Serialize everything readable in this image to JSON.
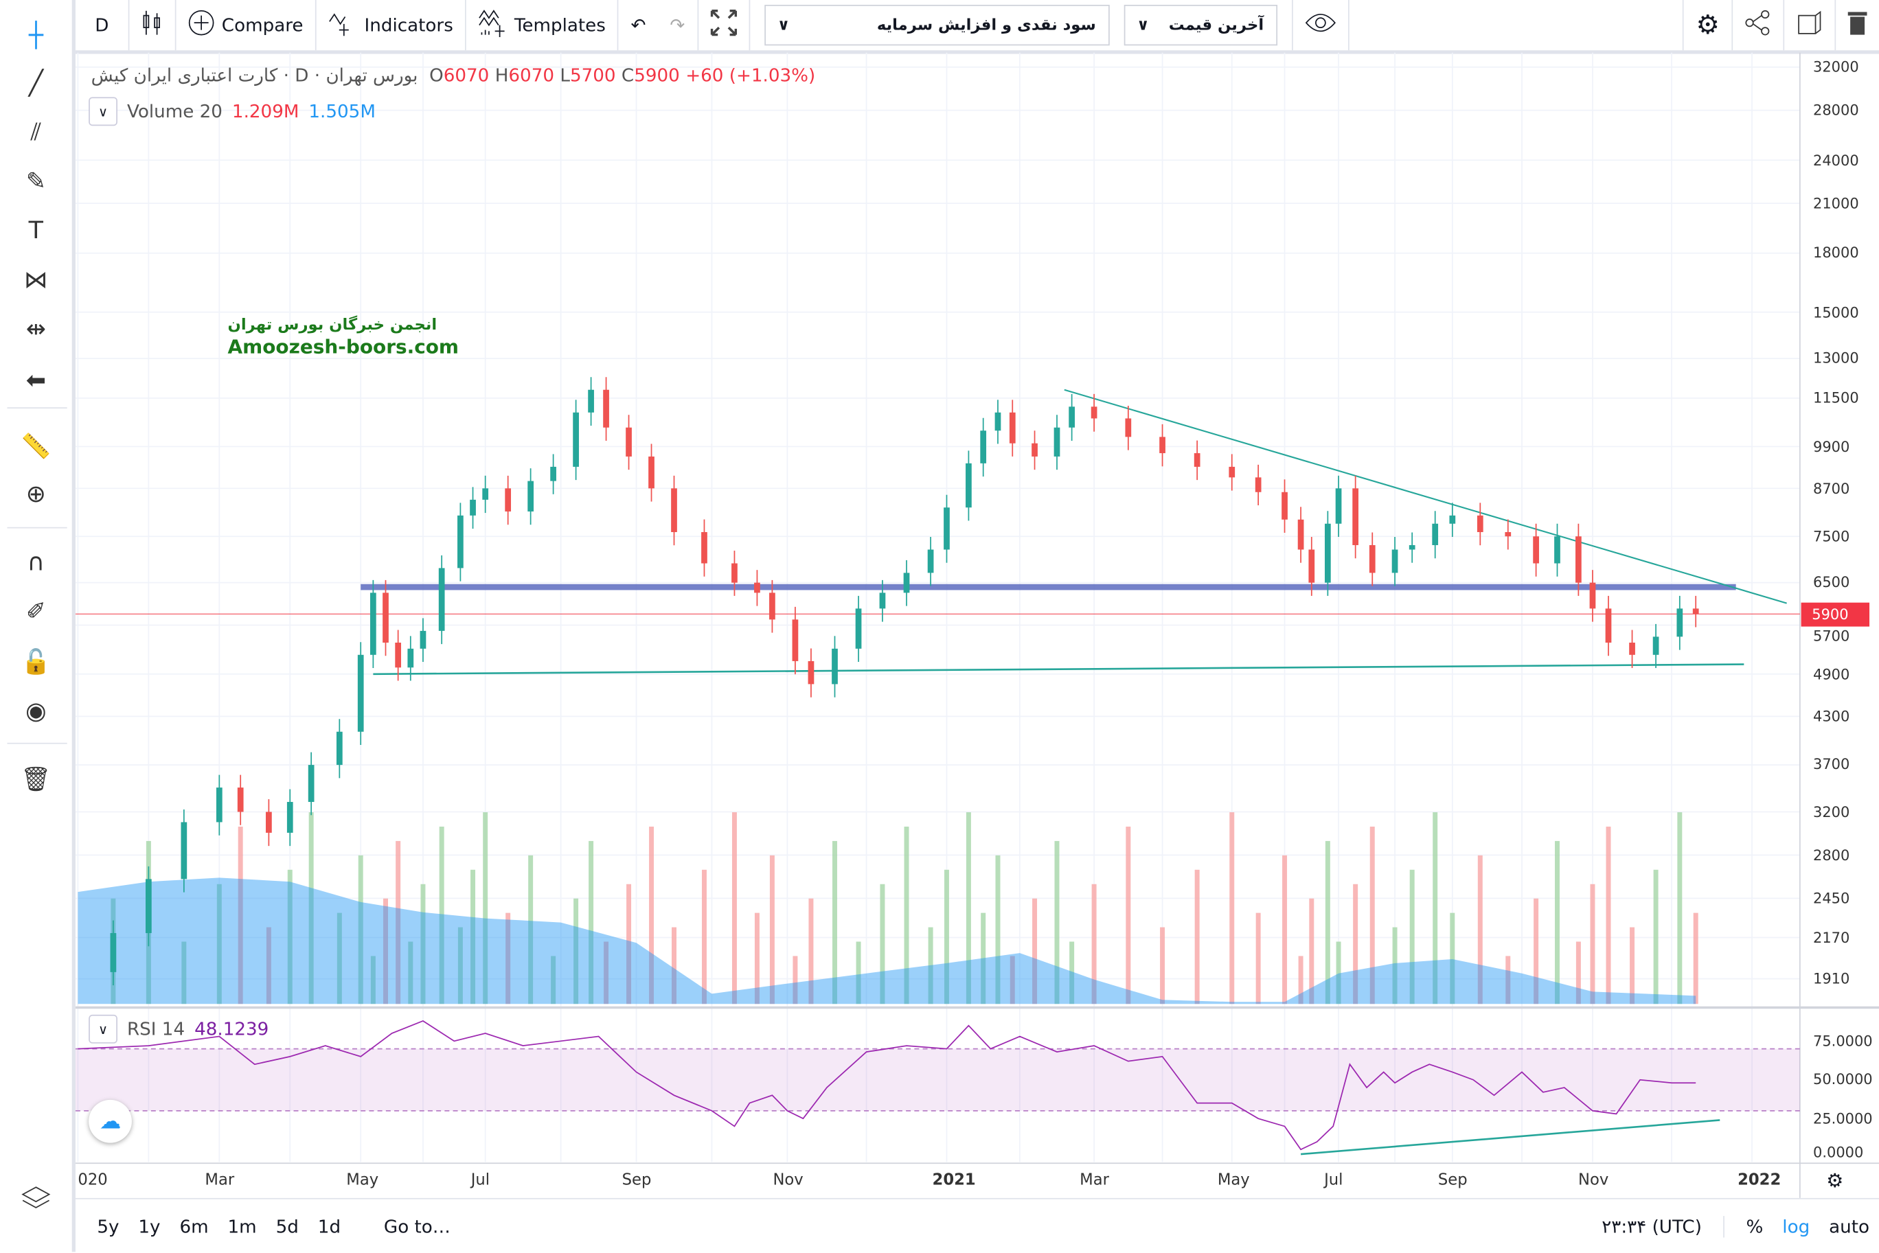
{
  "toolbar": {
    "interval": "D",
    "compare": "Compare",
    "indicators": "Indicators",
    "templates": "Templates",
    "dropdown1": "سود نقدی و افزایش سرمایه",
    "dropdown2": "آخرین قیمت"
  },
  "left_tools": [
    "crosshair-icon",
    "trend-line-icon",
    "pitchfork-icon",
    "brush-icon",
    "text-icon",
    "pattern-icon",
    "prediction-icon",
    "back-arrow-icon",
    "ruler-icon",
    "zoom-in-icon",
    "magnet-icon",
    "lock-drawing-icon",
    "unlock-icon",
    "eye-icon",
    "trash-icon"
  ],
  "legend": {
    "symbol": "کارت اعتباری ایران کیش",
    "interval": "D",
    "exchange": "بورس تهران",
    "o_label": "O",
    "o": "6070",
    "h_label": "H",
    "h": "6070",
    "l_label": "L",
    "l": "5700",
    "c_label": "C",
    "c": "5900",
    "change": "+60 (+1.03%)"
  },
  "volume": {
    "label": "Volume 20",
    "v1": "1.209M",
    "v2": "1.505M"
  },
  "rsi": {
    "label": "RSI 14",
    "value": "48.1239",
    "axis": [
      "75.0000",
      "50.0000",
      "25.0000",
      "0.0000"
    ]
  },
  "watermark": {
    "line1": "انجمن خبرگان بورس تهران",
    "line2": "Amoozesh-boors.com"
  },
  "price_axis": [
    "32000",
    "28000",
    "24000",
    "21000",
    "18000",
    "15000",
    "13000",
    "11500",
    "9900",
    "8700",
    "7500",
    "6500",
    "5700",
    "4900",
    "4300",
    "3700",
    "3200",
    "2800",
    "2450",
    "2170",
    "1910"
  ],
  "last_price": "5900",
  "time_axis": [
    "020",
    "Mar",
    "May",
    "Jul",
    "Sep",
    "Nov",
    "2021",
    "Mar",
    "May",
    "Jul",
    "Sep",
    "Nov",
    "2022"
  ],
  "bottom": {
    "ranges": [
      "5y",
      "1y",
      "6m",
      "1m",
      "5d",
      "1d"
    ],
    "goto": "Go to…",
    "time": "۲۳:۳۴ (UTC)",
    "percent": "%",
    "log": "log",
    "auto": "auto"
  },
  "colors": {
    "up": "#26a69a",
    "down": "#ef5350",
    "rsi": "#9c27b0",
    "zone": "#5c6bc0",
    "trend": "#26a69a",
    "vol_ma": "#2196f3"
  },
  "chart_data": {
    "type": "candlestick",
    "scale": "log",
    "ylim": [
      1910,
      32000
    ],
    "x_unit": "months since Jan 2020",
    "closes": [
      [
        0,
        1950
      ],
      [
        0.5,
        2200
      ],
      [
        1,
        2600
      ],
      [
        1.5,
        3100
      ],
      [
        2,
        3450
      ],
      [
        2.3,
        3200
      ],
      [
        2.7,
        3000
      ],
      [
        3,
        3300
      ],
      [
        3.3,
        3700
      ],
      [
        3.7,
        4100
      ],
      [
        4,
        5200
      ],
      [
        4.2,
        6300
      ],
      [
        4.4,
        5400
      ],
      [
        4.6,
        5000
      ],
      [
        4.8,
        5300
      ],
      [
        5,
        5600
      ],
      [
        5.3,
        6800
      ],
      [
        5.6,
        8000
      ],
      [
        5.8,
        8400
      ],
      [
        6,
        8700
      ],
      [
        6.3,
        8100
      ],
      [
        6.6,
        8900
      ],
      [
        6.9,
        9300
      ],
      [
        7.2,
        11000
      ],
      [
        7.4,
        11800
      ],
      [
        7.6,
        10500
      ],
      [
        7.9,
        9600
      ],
      [
        8.2,
        8700
      ],
      [
        8.5,
        7600
      ],
      [
        8.9,
        6900
      ],
      [
        9.3,
        6500
      ],
      [
        9.6,
        6300
      ],
      [
        9.8,
        5800
      ],
      [
        10.1,
        5100
      ],
      [
        10.3,
        4750
      ],
      [
        10.6,
        5300
      ],
      [
        10.9,
        6000
      ],
      [
        11.2,
        6300
      ],
      [
        11.5,
        6700
      ],
      [
        11.8,
        7200
      ],
      [
        12,
        8200
      ],
      [
        12.3,
        9400
      ],
      [
        12.5,
        10400
      ],
      [
        12.7,
        11000
      ],
      [
        12.9,
        10000
      ],
      [
        13.2,
        9600
      ],
      [
        13.5,
        10500
      ],
      [
        13.7,
        11200
      ],
      [
        14,
        10800
      ],
      [
        14.5,
        10200
      ],
      [
        15,
        9700
      ],
      [
        15.5,
        9300
      ],
      [
        16,
        9000
      ],
      [
        16.5,
        8600
      ],
      [
        17,
        7900
      ],
      [
        17.3,
        7200
      ],
      [
        17.5,
        6500
      ],
      [
        17.8,
        7800
      ],
      [
        18,
        8700
      ],
      [
        18.3,
        7300
      ],
      [
        18.6,
        6700
      ],
      [
        19,
        7200
      ],
      [
        19.3,
        7300
      ],
      [
        19.7,
        7800
      ],
      [
        20,
        8000
      ],
      [
        20.4,
        7600
      ],
      [
        20.8,
        7500
      ],
      [
        21.2,
        6900
      ],
      [
        21.5,
        7500
      ],
      [
        21.8,
        6500
      ],
      [
        22,
        6000
      ],
      [
        22.2,
        5400
      ],
      [
        22.5,
        5200
      ],
      [
        22.8,
        5500
      ],
      [
        23.1,
        6000
      ],
      [
        23.3,
        5900
      ]
    ],
    "volume_ma": [
      [
        0,
        0.55
      ],
      [
        1,
        0.6
      ],
      [
        2,
        0.62
      ],
      [
        3,
        0.6
      ],
      [
        4,
        0.5
      ],
      [
        5,
        0.45
      ],
      [
        6,
        0.42
      ],
      [
        7,
        0.4
      ],
      [
        8,
        0.3
      ],
      [
        9,
        0.05
      ],
      [
        10,
        0.1
      ],
      [
        11,
        0.15
      ],
      [
        12,
        0.2
      ],
      [
        13,
        0.25
      ],
      [
        14,
        0.12
      ],
      [
        15,
        0.02
      ],
      [
        16,
        0.01
      ],
      [
        17,
        0.01
      ],
      [
        18,
        0.15
      ],
      [
        19,
        0.2
      ],
      [
        20,
        0.22
      ],
      [
        21,
        0.15
      ],
      [
        22,
        0.06
      ],
      [
        23.3,
        0.04
      ]
    ],
    "rsi": [
      [
        0,
        70
      ],
      [
        1,
        72
      ],
      [
        2,
        78
      ],
      [
        2.5,
        60
      ],
      [
        3,
        65
      ],
      [
        3.5,
        72
      ],
      [
        4,
        65
      ],
      [
        4.5,
        80
      ],
      [
        5,
        88
      ],
      [
        5.5,
        75
      ],
      [
        6,
        80
      ],
      [
        6.5,
        72
      ],
      [
        7,
        75
      ],
      [
        7.5,
        78
      ],
      [
        8,
        55
      ],
      [
        8.5,
        40
      ],
      [
        9,
        30
      ],
      [
        9.3,
        20
      ],
      [
        9.5,
        35
      ],
      [
        9.8,
        40
      ],
      [
        10,
        30
      ],
      [
        10.2,
        25
      ],
      [
        10.5,
        45
      ],
      [
        11,
        68
      ],
      [
        11.5,
        72
      ],
      [
        12,
        70
      ],
      [
        12.3,
        85
      ],
      [
        12.6,
        70
      ],
      [
        13,
        78
      ],
      [
        13.5,
        68
      ],
      [
        14,
        72
      ],
      [
        14.5,
        62
      ],
      [
        15,
        65
      ],
      [
        15.5,
        35
      ],
      [
        16,
        35
      ],
      [
        16.5,
        25
      ],
      [
        17,
        20
      ],
      [
        17.3,
        5
      ],
      [
        17.6,
        10
      ],
      [
        17.9,
        20
      ],
      [
        18.2,
        60
      ],
      [
        18.5,
        45
      ],
      [
        18.8,
        55
      ],
      [
        19,
        48
      ],
      [
        19.3,
        55
      ],
      [
        19.6,
        60
      ],
      [
        20,
        55
      ],
      [
        20.3,
        50
      ],
      [
        20.6,
        40
      ],
      [
        21,
        55
      ],
      [
        21.3,
        42
      ],
      [
        21.6,
        45
      ],
      [
        22,
        30
      ],
      [
        22.3,
        28
      ],
      [
        22.6,
        50
      ],
      [
        23,
        48
      ],
      [
        23.3,
        48
      ]
    ],
    "rsi_band": [
      30,
      70
    ],
    "drawings": {
      "resistance_zone": {
        "from": 4,
        "to": 23.8,
        "price": 6400
      },
      "support_line": [
        [
          4.2,
          4900
        ],
        [
          23.9,
          5050
        ]
      ],
      "downtrend": [
        [
          13.6,
          11800
        ],
        [
          24.5,
          6100
        ]
      ],
      "rsi_trendline": [
        [
          17.3,
          2
        ],
        [
          23.6,
          24
        ]
      ]
    }
  }
}
